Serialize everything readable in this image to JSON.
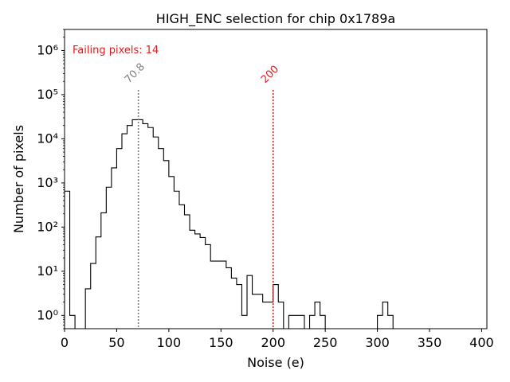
{
  "chart_data": {
    "type": "histogram",
    "title": "HIGH_ENC selection for chip 0x1789a",
    "xlabel": "Noise (e)",
    "ylabel": "Number of pixels",
    "xlim": [
      0,
      405
    ],
    "ylim": [
      0.5,
      3000000
    ],
    "yscale": "log",
    "grid": false,
    "bin_width": 5,
    "x_ticks": [
      0,
      50,
      100,
      150,
      200,
      250,
      300,
      350,
      400
    ],
    "y_ticks": [
      {
        "value": 1,
        "label": "10⁰"
      },
      {
        "value": 10,
        "label": "10¹"
      },
      {
        "value": 100,
        "label": "10²"
      },
      {
        "value": 1000,
        "label": "10³"
      },
      {
        "value": 10000,
        "label": "10⁴"
      },
      {
        "value": 100000,
        "label": "10⁵"
      },
      {
        "value": 1000000,
        "label": "10⁶"
      }
    ],
    "bins": [
      [
        0,
        650
      ],
      [
        5,
        1
      ],
      [
        20,
        4
      ],
      [
        25,
        15
      ],
      [
        30,
        60
      ],
      [
        35,
        210
      ],
      [
        40,
        800
      ],
      [
        45,
        2200
      ],
      [
        50,
        6000
      ],
      [
        55,
        13000
      ],
      [
        60,
        20000
      ],
      [
        65,
        27000
      ],
      [
        70,
        27000
      ],
      [
        75,
        22000
      ],
      [
        80,
        18000
      ],
      [
        85,
        11000
      ],
      [
        90,
        6000
      ],
      [
        95,
        3200
      ],
      [
        100,
        1400
      ],
      [
        105,
        650
      ],
      [
        110,
        320
      ],
      [
        115,
        190
      ],
      [
        120,
        85
      ],
      [
        125,
        70
      ],
      [
        130,
        58
      ],
      [
        135,
        40
      ],
      [
        140,
        17
      ],
      [
        145,
        17
      ],
      [
        150,
        17
      ],
      [
        155,
        12
      ],
      [
        160,
        7
      ],
      [
        165,
        5
      ],
      [
        170,
        1
      ],
      [
        175,
        8
      ],
      [
        180,
        3
      ],
      [
        185,
        3
      ],
      [
        190,
        2
      ],
      [
        195,
        2
      ],
      [
        200,
        5
      ],
      [
        205,
        2
      ],
      [
        215,
        1
      ],
      [
        220,
        1
      ],
      [
        225,
        1
      ],
      [
        235,
        1
      ],
      [
        240,
        2
      ],
      [
        245,
        1
      ],
      [
        300,
        1
      ],
      [
        305,
        2
      ],
      [
        310,
        1
      ]
    ],
    "annotations": {
      "failing_text": "Failing pixels: 14",
      "failing_color": "#e31a1c",
      "mean_line": {
        "x": 70.8,
        "label": "70.8",
        "color": "#808080"
      },
      "threshold_line": {
        "x": 200,
        "label": "200",
        "color": "#e31a1c"
      }
    }
  }
}
